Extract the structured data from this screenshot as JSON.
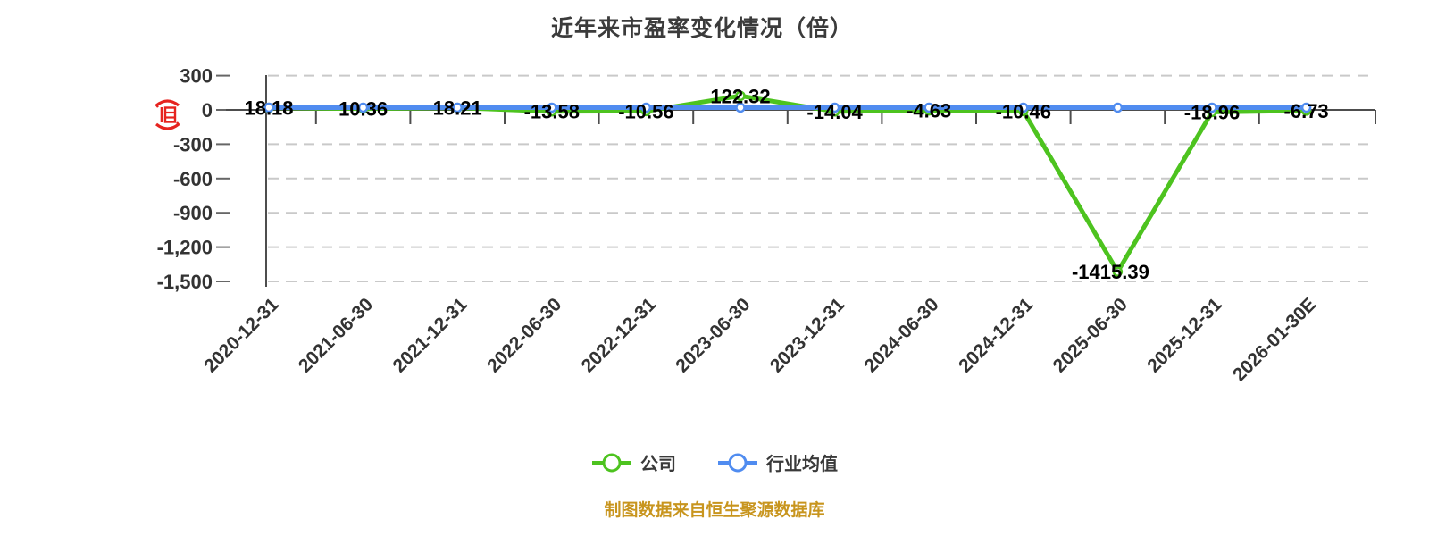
{
  "title": "近年来市盈率变化情况（倍）",
  "footer": {
    "source_note": "制图数据来自恒生聚源数据库"
  },
  "legend": {
    "position": "bottom",
    "items": [
      {
        "label": "公司",
        "color": "#4dc31f"
      },
      {
        "label": "行业均值",
        "color": "#508cf0"
      }
    ]
  },
  "icons": {
    "y_axis_stamp": "red-seal-icon"
  },
  "theme": {
    "background": "#ffffff",
    "title_color": "#3b3b3b",
    "gridline": "#c9c9c9",
    "axis": "#666666",
    "zero_line": "#4d4d4d",
    "axis_text": "#333333",
    "value_label": "#000000",
    "company_green": "#4dc31f",
    "industry_blue": "#508cf0",
    "seal_red": "#e6231f",
    "footer_gold": "#c8951e",
    "point_fill": "#ffffff"
  },
  "chart_data": {
    "type": "line",
    "title": "近年来市盈率变化情况（倍）",
    "unit": "倍",
    "categories": [
      "2020-12-31",
      "2021-06-30",
      "2021-12-31",
      "2022-06-30",
      "2022-12-31",
      "2023-06-30",
      "2023-12-31",
      "2024-06-30",
      "2024-12-31",
      "2025-06-30",
      "2025-12-31",
      "2026-01-30E"
    ],
    "series": [
      {
        "name": "公司",
        "color": "#4dc31f",
        "values": [
          18.18,
          10.36,
          18.21,
          -13.58,
          -10.56,
          122.32,
          -14.04,
          -4.63,
          -10.46,
          -1415.39,
          -18.96,
          -6.73
        ],
        "labels": [
          "18.18",
          "10.36",
          "18.21",
          "-13.58",
          "-10.56",
          "122.32",
          "-14.04",
          "-4.63",
          "-10.46",
          "-1415.39",
          "-18.96",
          "-6.73"
        ]
      },
      {
        "name": "行业均值",
        "color": "#508cf0",
        "values": [
          20,
          20,
          20,
          20,
          20,
          20,
          20,
          20,
          20,
          20,
          20,
          20
        ],
        "values_estimated": true,
        "note": "industry average line is flat near zero; exact values are not labeled in the image"
      }
    ],
    "y_axis": {
      "ticks": [
        {
          "label": "300",
          "value": 300
        },
        {
          "label": "0",
          "value": 0
        },
        {
          "label": "-300",
          "value": -300
        },
        {
          "label": "-600",
          "value": -600
        },
        {
          "label": "-900",
          "value": -900
        },
        {
          "label": "-1,200",
          "value": -1200
        },
        {
          "label": "-1,500",
          "value": -1500
        }
      ],
      "ylim": [
        -1500,
        300
      ]
    },
    "grid": {
      "horizontal_dashed": true
    },
    "x_axis": {
      "label_rotation_deg": -45,
      "axis_at_zero": true
    }
  }
}
